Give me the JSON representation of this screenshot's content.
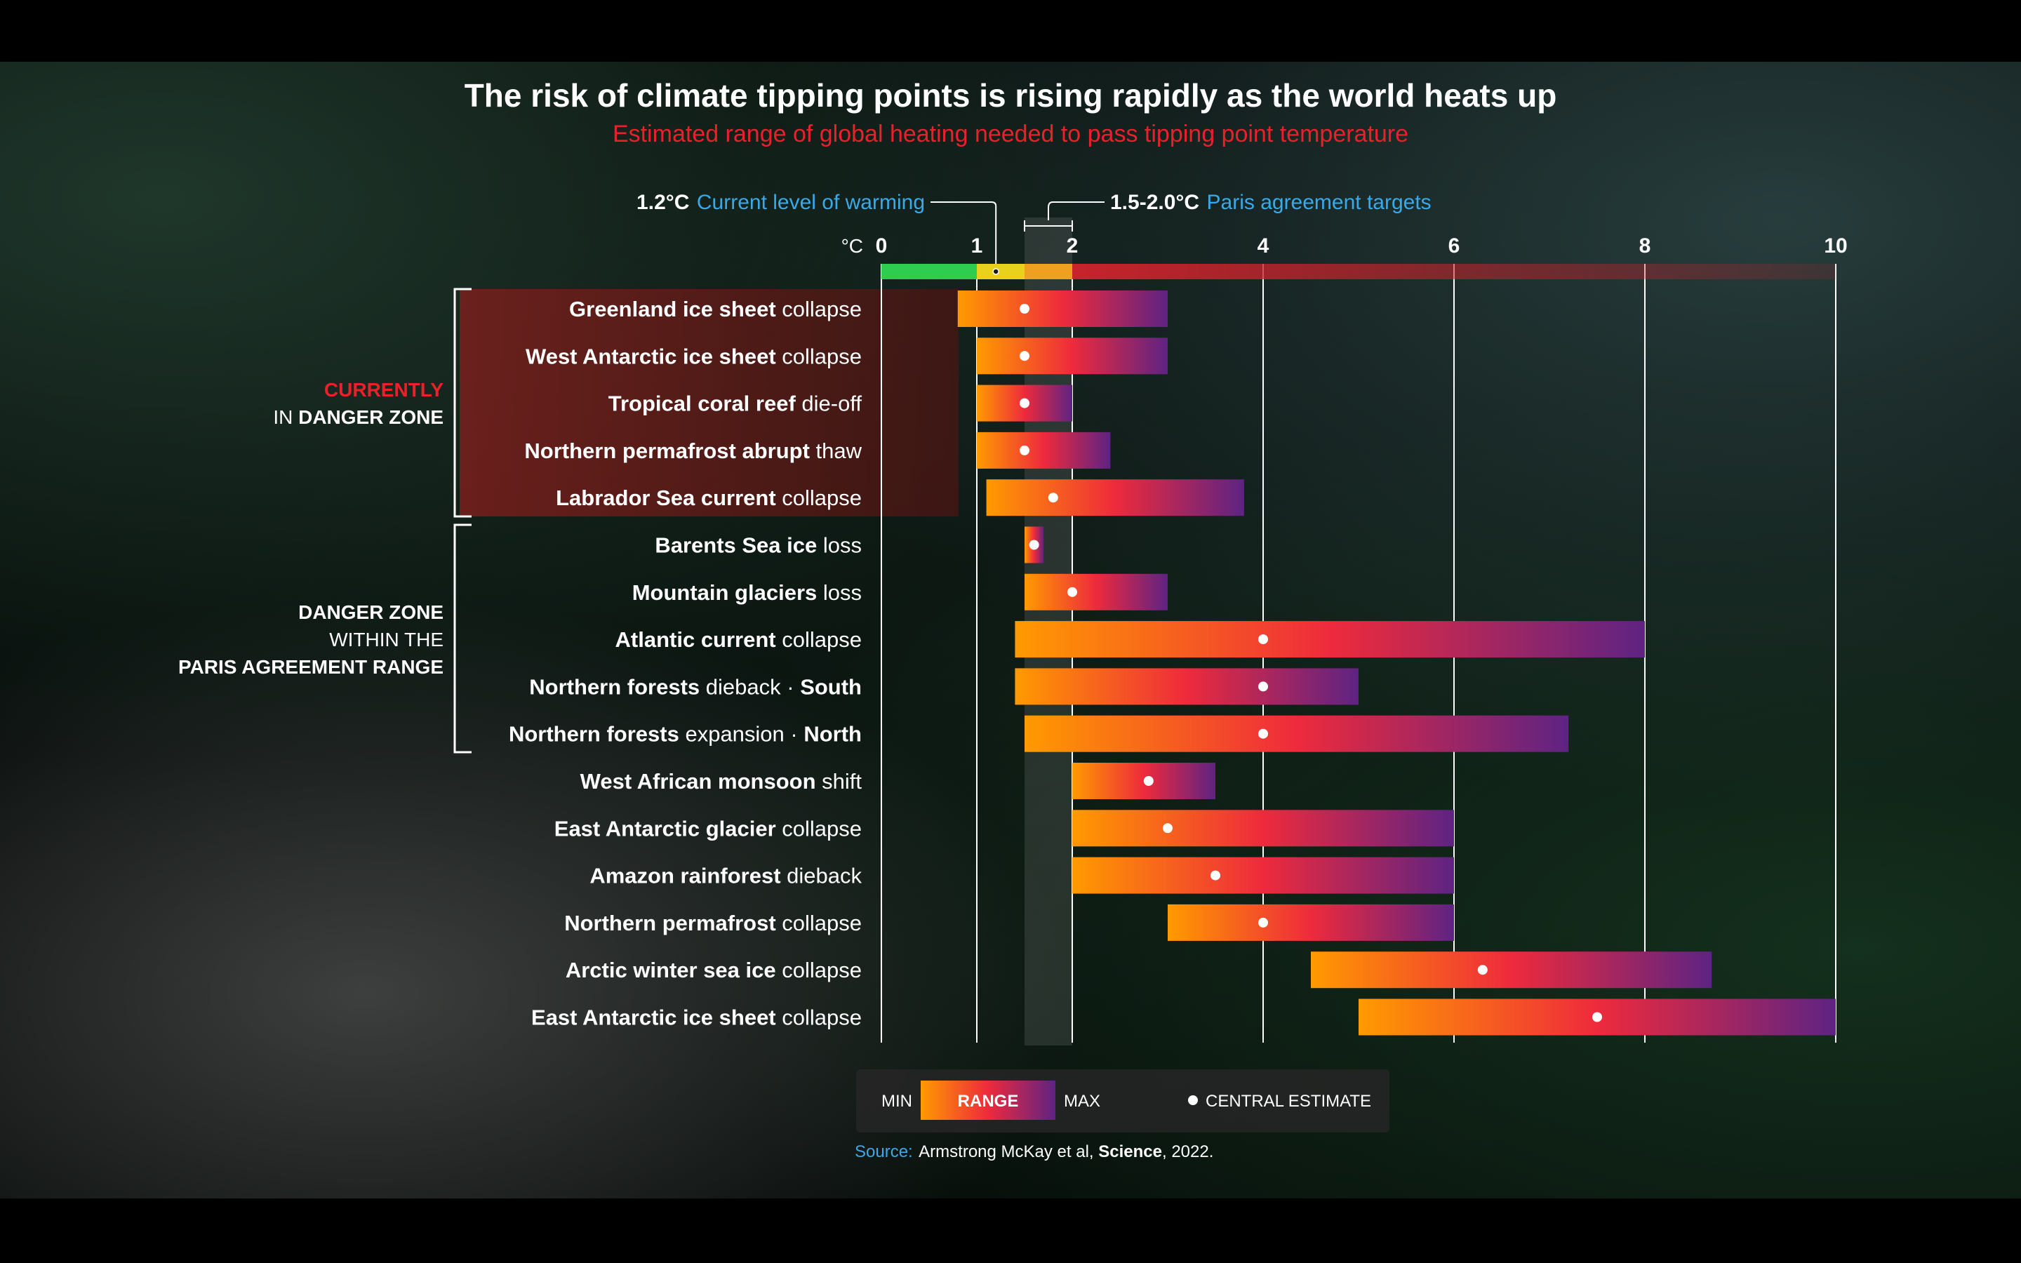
{
  "title": "The risk of climate tipping points is rising rapidly as the world heats up",
  "subtitle": "Estimated range of global heating needed to pass tipping point temperature",
  "colors": {
    "min": "#ff8a00",
    "mid": "#e8212b",
    "max": "#6a1f8c",
    "accent_blue": "#39a9e8",
    "danger_red": "#e8212b"
  },
  "annotations": {
    "current": {
      "value": "1.2°C",
      "text": "Current level of warming"
    },
    "paris": {
      "value": "1.5-2.0°C",
      "text": "Paris agreement targets"
    }
  },
  "groups": {
    "current_red": "CURRENTLY",
    "current_in": "IN ",
    "current_bold": "DANGER ZONE",
    "paris_line1": "DANGER ZONE",
    "paris_line2": "WITHIN THE",
    "paris_line3": "PARIS AGREEMENT RANGE"
  },
  "legend": {
    "min": "MIN",
    "range": "RANGE",
    "max": "MAX",
    "central": "CENTRAL ESTIMATE"
  },
  "source": {
    "label": "Source:",
    "text": "Armstrong McKay et al, ",
    "journal": "Science",
    "year": ", 2022."
  },
  "chart_data": {
    "type": "bar",
    "orientation": "horizontal-range",
    "title": "The risk of climate tipping points is rising rapidly as the world heats up",
    "subtitle": "Estimated range of global heating needed to pass tipping point temperature",
    "xunit": "°C",
    "xlim": [
      0,
      10
    ],
    "ticks": [
      0,
      1,
      2,
      4,
      6,
      8,
      10
    ],
    "current_warming": 1.2,
    "paris_range": [
      1.5,
      2.0
    ],
    "scale_segments": [
      {
        "from": 0,
        "to": 1,
        "color": "#2ecc4f"
      },
      {
        "from": 1,
        "to": 1.5,
        "color": "#e8d21d"
      },
      {
        "from": 1.5,
        "to": 2,
        "color": "#f0a020"
      },
      {
        "from": 2,
        "to": 10,
        "color": "#c8232c"
      }
    ],
    "groups": [
      {
        "name": "CURRENTLY IN DANGER ZONE",
        "rows": [
          0,
          4
        ]
      },
      {
        "name": "DANGER ZONE WITHIN THE PARIS AGREEMENT RANGE",
        "rows": [
          5,
          9
        ]
      }
    ],
    "series": [
      {
        "bold": "Greenland ice sheet",
        "rest": " collapse",
        "min": 0.8,
        "max": 3.0,
        "central": 1.5
      },
      {
        "bold": "West Antarctic ice sheet",
        "rest": " collapse",
        "min": 1.0,
        "max": 3.0,
        "central": 1.5
      },
      {
        "bold": "Tropical coral reef",
        "rest": " die-off",
        "min": 1.0,
        "max": 2.0,
        "central": 1.5
      },
      {
        "bold": "Northern permafrost abrupt",
        "rest": " thaw",
        "min": 1.0,
        "max": 2.4,
        "central": 1.5
      },
      {
        "bold": "Labrador Sea current",
        "rest": " collapse",
        "min": 1.1,
        "max": 3.8,
        "central": 1.8
      },
      {
        "bold": "Barents Sea ice",
        "rest": " loss",
        "min": 1.5,
        "max": 1.7,
        "central": 1.6
      },
      {
        "bold": "Mountain glaciers",
        "rest": " loss",
        "min": 1.5,
        "max": 3.0,
        "central": 2.0
      },
      {
        "bold": "Atlantic current",
        "rest": " collapse",
        "min": 1.4,
        "max": 8.0,
        "central": 4.0
      },
      {
        "bold": "Northern forests",
        "rest": " dieback · ",
        "tail": "South",
        "min": 1.4,
        "max": 5.0,
        "central": 4.0
      },
      {
        "bold": "Northern forests",
        "rest": " expansion · ",
        "tail": "North",
        "min": 1.5,
        "max": 7.2,
        "central": 4.0
      },
      {
        "bold": "West African monsoon",
        "rest": " shift",
        "min": 2.0,
        "max": 3.5,
        "central": 2.8
      },
      {
        "bold": "East Antarctic glacier",
        "rest": " collapse",
        "min": 2.0,
        "max": 6.0,
        "central": 3.0
      },
      {
        "bold": "Amazon rainforest",
        "rest": " dieback",
        "min": 2.0,
        "max": 6.0,
        "central": 3.5
      },
      {
        "bold": "Northern permafrost",
        "rest": " collapse",
        "min": 3.0,
        "max": 6.0,
        "central": 4.0
      },
      {
        "bold": "Arctic winter sea ice",
        "rest": " collapse",
        "min": 4.5,
        "max": 8.7,
        "central": 6.3
      },
      {
        "bold": "East Antarctic ice sheet",
        "rest": " collapse",
        "min": 5.0,
        "max": 10.0,
        "central": 7.5
      }
    ]
  }
}
